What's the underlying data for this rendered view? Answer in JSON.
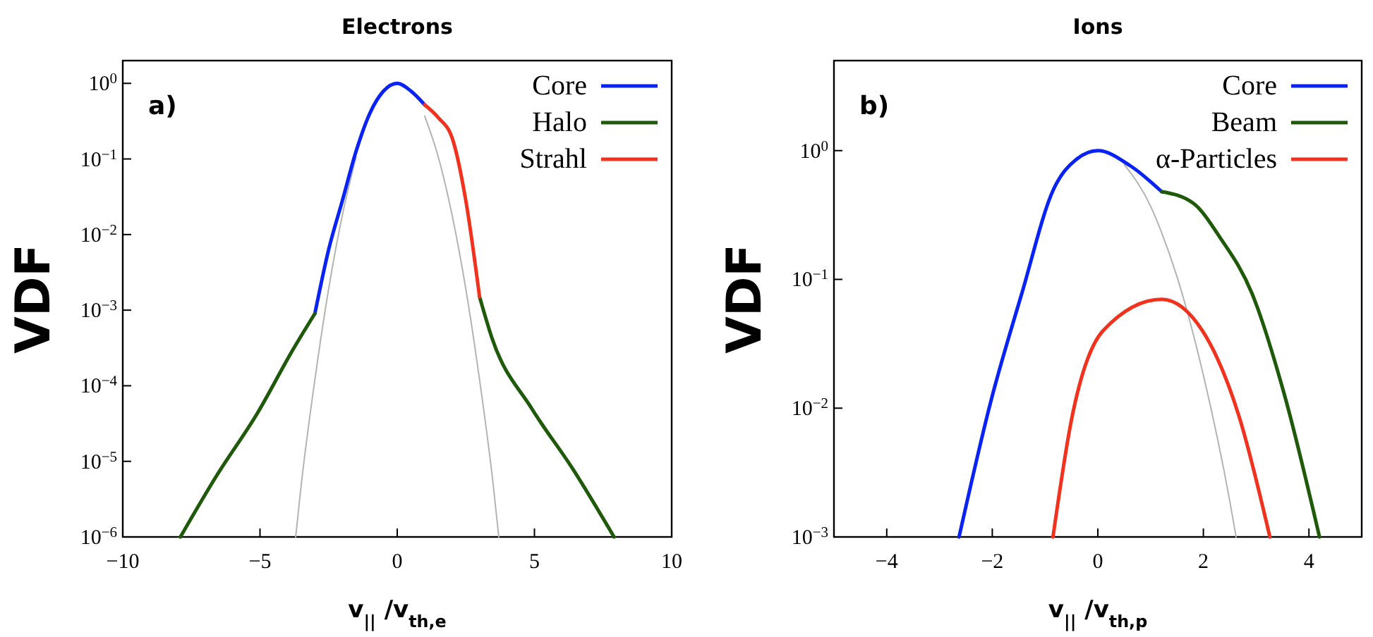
{
  "chart_data": [
    {
      "type": "line",
      "title": "Electrons",
      "xlabel": "v$_{||}$ /v$_{th,e}$",
      "ylabel": "VDF",
      "log": "y",
      "xlim": [
        -10,
        10
      ],
      "xticks": [
        {
          "value": -10,
          "label": "−10"
        },
        {
          "value": -5,
          "label": "−5"
        },
        0,
        5,
        10
      ],
      "ylim": [
        1e-06,
        2
      ],
      "yticks": [
        {
          "value": 1e-06,
          "label": "10$^{−6}$"
        },
        {
          "value": 1e-05,
          "label": "10$^{−5}$"
        },
        {
          "value": 0.0001,
          "label": "10$^{−4}$"
        },
        {
          "value": 0.001,
          "label": "10$^{−3}$"
        },
        {
          "value": 0.01,
          "label": "10$^{−2}$"
        },
        {
          "value": 0.1,
          "label": "10$^{−1}$"
        },
        {
          "value": 1,
          "label": "10$^{0}$"
        }
      ],
      "grid": false,
      "legend": "top right",
      "annotations": [
        "a)"
      ],
      "series": [
        {
          "color": "#b4b4b4",
          "x": [
            -3.7,
            -3.5,
            -3,
            -2.5,
            -2,
            -1.5,
            -1,
            -0.5,
            0,
            0.5,
            1,
            1.5,
            2,
            2.5,
            3,
            3.5,
            3.7
          ],
          "values": [
            1e-06,
            4.8e-06,
            0.00012,
            0.0019,
            0.018,
            0.105,
            null,
            null,
            null,
            null,
            0.37,
            0.105,
            0.018,
            0.0019,
            0.00012,
            4.8e-06,
            1e-06
          ]
        },
        {
          "name": "Core",
          "color": "#0a23f5",
          "x": [
            -3,
            -2.5,
            -2,
            -1.5,
            -1,
            -0.5,
            0,
            0.5,
            1
          ],
          "values": [
            0.0009,
            0.0063,
            0.028,
            0.126,
            0.4,
            0.79,
            1,
            0.79,
            0.52
          ]
        },
        {
          "name": "Halo",
          "color": "#1e5a0a",
          "x": [
            -7.9,
            -6.6,
            -5.1,
            -3.8,
            -3,
            0,
            3,
            3.45,
            4.9,
            6.4,
            7.9
          ],
          "values": [
            1e-06,
            6.3e-06,
            4.3e-05,
            0.0003,
            0.0009,
            null,
            0.0015,
            0.00043,
            5e-05,
            7.9e-06,
            1e-06
          ]
        },
        {
          "name": "Strahl",
          "color": "#f0321e",
          "x": [
            1,
            1.5,
            2,
            2.5,
            3
          ],
          "values": [
            0.52,
            0.35,
            0.19,
            0.028,
            0.0015
          ]
        }
      ]
    },
    {
      "type": "line",
      "title": "Ions",
      "xlabel": "v$_{||}$ /v$_{th,p}$",
      "ylabel": "VDF",
      "log": "y",
      "xlim": [
        -5,
        5
      ],
      "xticks": [
        {
          "value": -4,
          "label": "−4"
        },
        {
          "value": -2,
          "label": "−2"
        },
        0,
        2,
        4
      ],
      "ylim": [
        0.001,
        5
      ],
      "yticks": [
        {
          "value": 0.001,
          "label": "10$^{−3}$"
        },
        {
          "value": 0.01,
          "label": "10$^{−2}$"
        },
        {
          "value": 0.1,
          "label": "10$^{−1}$"
        },
        {
          "value": 1,
          "label": "10$^{0}$"
        }
      ],
      "grid": false,
      "legend": "top right",
      "annotations": [
        "b)"
      ],
      "series": [
        {
          "color": "#b4b4b4",
          "x": [
            0.5,
            1,
            1.21,
            1.5,
            2,
            2.5,
            2.62
          ],
          "values": [
            0.78,
            0.37,
            0.23,
            0.105,
            0.018,
            0.0019,
            0.001
          ]
        },
        {
          "name": "Core",
          "color": "#0a23f5",
          "x": [
            -2.63,
            -2.03,
            -1.44,
            -0.84,
            -0.4,
            0,
            0.62,
            1.21
          ],
          "values": [
            0.001,
            0.0112,
            0.078,
            0.5,
            0.86,
            1,
            0.76,
            0.48
          ]
        },
        {
          "name": "Beam",
          "color": "#1e5a0a",
          "x": [
            1.21,
            1.81,
            2.32,
            2.92,
            3.52,
            4.2
          ],
          "values": [
            0.48,
            0.39,
            0.21,
            0.078,
            0.0134,
            0.001
          ]
        },
        {
          "name": "α-Particles",
          "color": "#f0321e",
          "x": [
            -0.85,
            -0.5,
            0.1,
            1.21,
            1.98,
            2.67,
            3.26
          ],
          "values": [
            0.001,
            0.0081,
            0.04,
            0.07,
            0.04,
            0.0088,
            0.001
          ]
        }
      ]
    }
  ]
}
